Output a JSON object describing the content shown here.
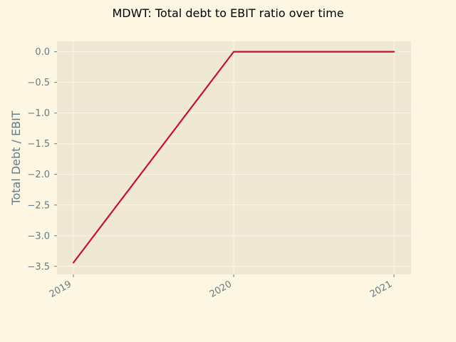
{
  "chart_data": {
    "type": "line",
    "title": "MDWT: Total debt to EBIT ratio over time",
    "xlabel": "",
    "ylabel": "Total Debt / EBIT",
    "x": [
      "2019",
      "2020",
      "2021"
    ],
    "series": [
      {
        "values": [
          -3.44,
          0.0,
          0.0
        ]
      }
    ],
    "ylim": [
      -3.63,
      0.17
    ],
    "yticks": [
      0.0,
      -0.5,
      -1.0,
      -1.5,
      -2.0,
      -2.5,
      -3.0,
      -3.5
    ],
    "ytick_labels": [
      "0.0",
      "−0.5",
      "−1.0",
      "−1.5",
      "−2.0",
      "−2.5",
      "−3.0",
      "−3.5"
    ],
    "xtick_labels": [
      "2019",
      "2020",
      "2021"
    ],
    "grid": true,
    "legend": "none",
    "colors": {
      "background": "#fdf6e3",
      "plot_background": "#eee8d5",
      "grid": "#fdf6e3",
      "line": "#c8102e",
      "tick_text": "#657b83",
      "title_text": "#000000"
    }
  }
}
